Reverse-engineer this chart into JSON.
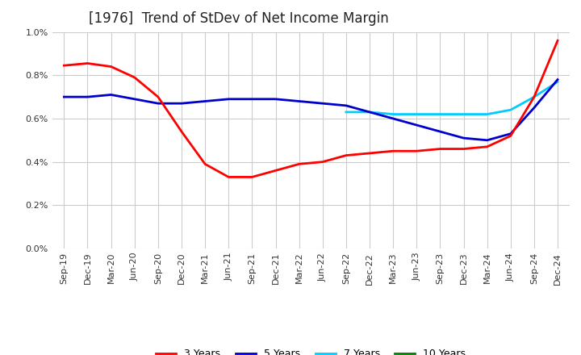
{
  "title": "[1976]  Trend of StDev of Net Income Margin",
  "title_fontsize": 12,
  "ylim": [
    0.0,
    1.0
  ],
  "yticks": [
    0.0,
    0.2,
    0.4,
    0.6,
    0.8,
    1.0
  ],
  "background_color": "#ffffff",
  "grid_color": "#cccccc",
  "legend_labels": [
    "3 Years",
    "5 Years",
    "7 Years",
    "10 Years"
  ],
  "legend_colors": [
    "#ff0000",
    "#0000cd",
    "#00ccff",
    "#008000"
  ],
  "x_labels": [
    "Sep-19",
    "Dec-19",
    "Mar-20",
    "Jun-20",
    "Sep-20",
    "Dec-20",
    "Mar-21",
    "Jun-21",
    "Sep-21",
    "Dec-21",
    "Mar-22",
    "Jun-22",
    "Sep-22",
    "Dec-22",
    "Mar-23",
    "Jun-23",
    "Sep-23",
    "Dec-23",
    "Mar-24",
    "Jun-24",
    "Sep-24",
    "Dec-24"
  ],
  "series_3y": [
    0.845,
    0.855,
    0.84,
    0.79,
    0.7,
    0.54,
    0.39,
    0.33,
    0.33,
    0.36,
    0.39,
    0.4,
    0.43,
    0.44,
    0.45,
    0.45,
    0.46,
    0.46,
    0.47,
    0.52,
    0.7,
    0.96
  ],
  "series_5y": [
    0.7,
    0.7,
    0.71,
    0.69,
    0.67,
    0.67,
    0.68,
    0.69,
    0.69,
    0.69,
    0.68,
    0.67,
    0.66,
    0.63,
    0.6,
    0.57,
    0.54,
    0.51,
    0.5,
    0.53,
    0.65,
    0.78
  ],
  "series_7y": [
    null,
    null,
    null,
    null,
    null,
    null,
    null,
    null,
    null,
    null,
    null,
    null,
    0.63,
    0.63,
    0.62,
    0.62,
    0.62,
    0.62,
    0.62,
    0.64,
    0.7,
    0.77
  ],
  "series_10y": [
    null,
    null,
    null,
    null,
    null,
    null,
    null,
    null,
    null,
    null,
    null,
    null,
    null,
    null,
    null,
    null,
    null,
    null,
    null,
    null,
    null,
    null
  ]
}
